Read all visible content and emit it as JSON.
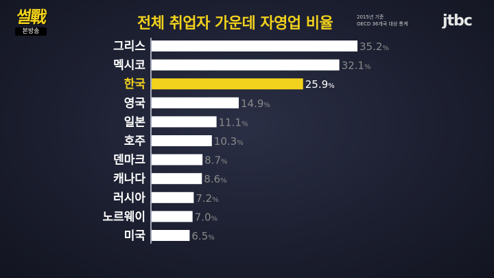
{
  "logo": {
    "title": "썰戰",
    "subtitle": "본방송"
  },
  "broadcaster": "jtbc",
  "header": {
    "title": "전체 취업자 가운데 자영업 비율",
    "note_line1": "2015년 기준",
    "note_line2": "OECD 36개국 대상 통계"
  },
  "colors": {
    "bar": "#ffffff",
    "highlight_bar": "#f2d21c",
    "label": "#ffffff",
    "highlight_label": "#f2d21c",
    "value": "#8a8a8a",
    "highlight_value": "#ffffff",
    "axis": "#cfd6e6"
  },
  "chart_data": {
    "type": "bar",
    "orientation": "horizontal",
    "title": "전체 취업자 가운데 자영업 비율",
    "unit": "%",
    "highlight": "한국",
    "categories": [
      "그리스",
      "멕시코",
      "한국",
      "영국",
      "일본",
      "호주",
      "덴마크",
      "캐나다",
      "러시아",
      "노르웨이",
      "미국"
    ],
    "values": [
      35.2,
      32.1,
      25.9,
      14.9,
      11.1,
      10.3,
      8.7,
      8.6,
      7.2,
      7.0,
      6.5
    ],
    "value_labels": [
      "35.2",
      "32.1",
      "25.9",
      "14.9",
      "11.1",
      "10.3",
      "8.7",
      "8.6",
      "7.2",
      "7.0",
      "6.5"
    ],
    "xlim": [
      0,
      35.2
    ]
  }
}
